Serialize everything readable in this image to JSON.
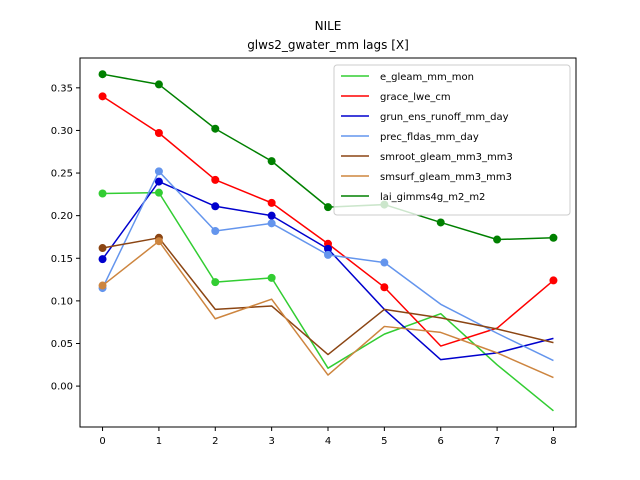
{
  "chart_data": {
    "type": "line",
    "title": "NILE",
    "subtitle": "glws2_gwater_mm lags [X]",
    "xlabel": "",
    "ylabel": "",
    "x": [
      0,
      1,
      2,
      3,
      4,
      5,
      6,
      7,
      8
    ],
    "xlim": [
      -0.4,
      8.4
    ],
    "ylim": [
      -0.048,
      0.385
    ],
    "yticks": [
      0.0,
      0.05,
      0.1,
      0.15,
      0.2,
      0.25,
      0.3,
      0.35
    ],
    "ytick_labels": [
      "0.00",
      "0.05",
      "0.10",
      "0.15",
      "0.20",
      "0.25",
      "0.30",
      "0.35"
    ],
    "xtick_labels": [
      "0",
      "1",
      "2",
      "3",
      "4",
      "5",
      "6",
      "7",
      "8"
    ],
    "grid": false,
    "legend_position": "top-right",
    "series": [
      {
        "name": "e_gleam_mm_mon",
        "color": "#32cd32",
        "values": [
          0.226,
          0.227,
          0.122,
          0.127,
          0.021,
          0.061,
          0.085,
          0.025,
          -0.029
        ],
        "markers": [
          true,
          true,
          true,
          true,
          false,
          false,
          false,
          false,
          false
        ]
      },
      {
        "name": "grace_lwe_cm",
        "color": "#ff0000",
        "values": [
          0.34,
          0.297,
          0.242,
          0.215,
          0.167,
          0.116,
          0.047,
          0.068,
          0.124
        ],
        "markers": [
          true,
          true,
          true,
          true,
          true,
          true,
          false,
          false,
          true
        ]
      },
      {
        "name": "grun_ens_runoff_mm_day",
        "color": "#0000cd",
        "values": [
          0.149,
          0.24,
          0.211,
          0.2,
          0.161,
          0.09,
          0.031,
          0.039,
          0.056
        ],
        "markers": [
          true,
          true,
          true,
          true,
          true,
          false,
          false,
          false,
          false
        ]
      },
      {
        "name": "prec_fldas_mm_day",
        "color": "#6495ed",
        "values": [
          0.115,
          0.252,
          0.182,
          0.191,
          0.154,
          0.145,
          0.096,
          0.062,
          0.03
        ],
        "markers": [
          true,
          true,
          true,
          true,
          true,
          true,
          false,
          false,
          false
        ]
      },
      {
        "name": "smroot_gleam_mm3_mm3",
        "color": "#8b4513",
        "values": [
          0.162,
          0.174,
          0.09,
          0.094,
          0.037,
          0.09,
          0.08,
          0.067,
          0.051
        ],
        "markers": [
          true,
          true,
          false,
          false,
          false,
          false,
          false,
          false,
          false
        ]
      },
      {
        "name": "smsurf_gleam_mm3_mm3",
        "color": "#cd853f",
        "values": [
          0.118,
          0.17,
          0.079,
          0.102,
          0.013,
          0.07,
          0.063,
          0.039,
          0.01
        ],
        "markers": [
          true,
          true,
          false,
          false,
          false,
          false,
          false,
          false,
          false
        ]
      },
      {
        "name": "lai_gimms4g_m2_m2",
        "color": "#008000",
        "values": [
          0.366,
          0.354,
          0.302,
          0.264,
          0.21,
          0.213,
          0.192,
          0.172,
          0.174
        ],
        "markers": [
          true,
          true,
          true,
          true,
          true,
          true,
          true,
          true,
          true
        ]
      }
    ]
  }
}
